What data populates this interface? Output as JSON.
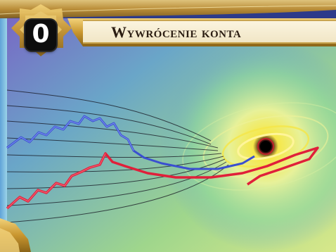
{
  "card": {
    "title": "Wywrócenie konta",
    "cost": "0"
  },
  "artwork": {
    "description_icon": "black-hole-market-graph",
    "colors": {
      "frame_gold": "#d4a73a",
      "banner_cream": "#f5ecd4",
      "blue_line": "#3a4fd0",
      "red_line": "#e0203a",
      "vortex_yellow": "#f6e84a"
    }
  }
}
